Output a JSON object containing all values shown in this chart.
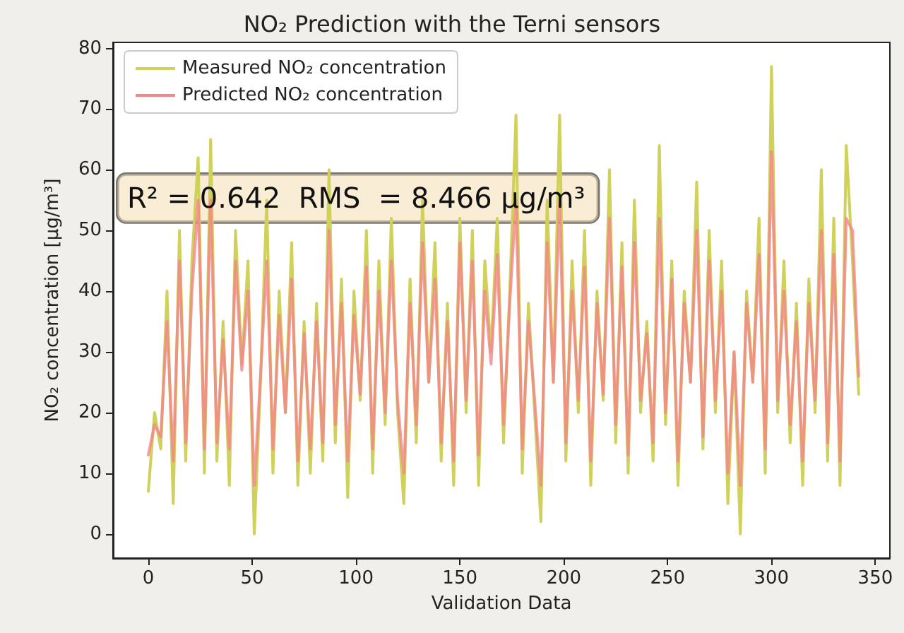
{
  "chart_data": {
    "type": "line",
    "title": "NO₂ Prediction with the Terni sensors",
    "xlabel": "Validation Data",
    "ylabel": "NO₂ concentration [μg/m³]",
    "annotations": [
      "R² = 0.642  RMS  = 8.466 μg/m³"
    ],
    "x": [
      0,
      3,
      6,
      9,
      12,
      15,
      18,
      21,
      24,
      27,
      30,
      33,
      36,
      39,
      42,
      45,
      48,
      51,
      54,
      57,
      60,
      63,
      66,
      69,
      72,
      75,
      78,
      81,
      84,
      87,
      90,
      93,
      96,
      99,
      102,
      105,
      108,
      111,
      114,
      117,
      120,
      123,
      126,
      129,
      132,
      135,
      138,
      141,
      144,
      147,
      150,
      153,
      156,
      159,
      162,
      165,
      168,
      171,
      174,
      177,
      180,
      183,
      186,
      189,
      192,
      195,
      198,
      201,
      204,
      207,
      210,
      213,
      216,
      219,
      222,
      225,
      228,
      231,
      234,
      237,
      240,
      243,
      246,
      249,
      252,
      255,
      258,
      261,
      264,
      267,
      270,
      273,
      276,
      279,
      282,
      285,
      288,
      291,
      294,
      297,
      300,
      303,
      306,
      309,
      312,
      315,
      318,
      321,
      324,
      327,
      330,
      333,
      336,
      339,
      342
    ],
    "series": [
      {
        "name": "Measured NO₂ concentration",
        "color": "#cfd15a",
        "values": [
          7,
          20,
          14,
          40,
          5,
          50,
          12,
          45,
          62,
          10,
          65,
          12,
          35,
          8,
          50,
          28,
          45,
          0,
          25,
          55,
          10,
          40,
          20,
          48,
          8,
          35,
          10,
          38,
          12,
          60,
          15,
          42,
          6,
          40,
          22,
          50,
          10,
          45,
          18,
          52,
          20,
          5,
          42,
          15,
          55,
          25,
          48,
          12,
          38,
          8,
          52,
          20,
          50,
          8,
          45,
          30,
          52,
          15,
          40,
          69,
          10,
          38,
          20,
          2,
          55,
          25,
          69,
          12,
          45,
          20,
          50,
          8,
          40,
          22,
          60,
          15,
          48,
          10,
          55,
          20,
          35,
          12,
          64,
          18,
          45,
          8,
          40,
          25,
          58,
          14,
          50,
          20,
          45,
          5,
          30,
          0,
          40,
          25,
          52,
          10,
          77,
          20,
          45,
          15,
          38,
          8,
          42,
          20,
          60,
          12,
          52,
          8,
          64,
          45,
          23
        ]
      },
      {
        "name": "Predicted NO₂ concentration",
        "color": "#f4858a",
        "values": [
          13,
          18,
          16,
          35,
          12,
          45,
          15,
          40,
          55,
          14,
          55,
          15,
          32,
          14,
          45,
          27,
          40,
          8,
          26,
          45,
          14,
          36,
          20,
          42,
          12,
          33,
          14,
          35,
          15,
          50,
          18,
          38,
          12,
          36,
          23,
          44,
          14,
          40,
          20,
          45,
          22,
          10,
          38,
          18,
          48,
          25,
          42,
          15,
          35,
          12,
          48,
          22,
          45,
          13,
          40,
          28,
          46,
          18,
          38,
          55,
          14,
          35,
          22,
          8,
          48,
          25,
          55,
          15,
          40,
          22,
          44,
          12,
          38,
          23,
          52,
          18,
          44,
          13,
          48,
          22,
          33,
          15,
          52,
          20,
          42,
          12,
          38,
          25,
          50,
          16,
          45,
          22,
          40,
          10,
          30,
          8,
          38,
          25,
          46,
          14,
          63,
          22,
          40,
          18,
          35,
          12,
          38,
          22,
          50,
          15,
          46,
          12,
          52,
          50,
          26
        ]
      }
    ],
    "xlim": [
      -17,
      357
    ],
    "xticks": [
      0,
      50,
      100,
      150,
      200,
      250,
      300,
      350
    ],
    "ylim": [
      -4,
      81
    ],
    "yticks": [
      0,
      10,
      20,
      30,
      40,
      50,
      60,
      70,
      80
    ],
    "legend": "top left",
    "grid": false,
    "marker": "none",
    "line_style": "solid"
  }
}
